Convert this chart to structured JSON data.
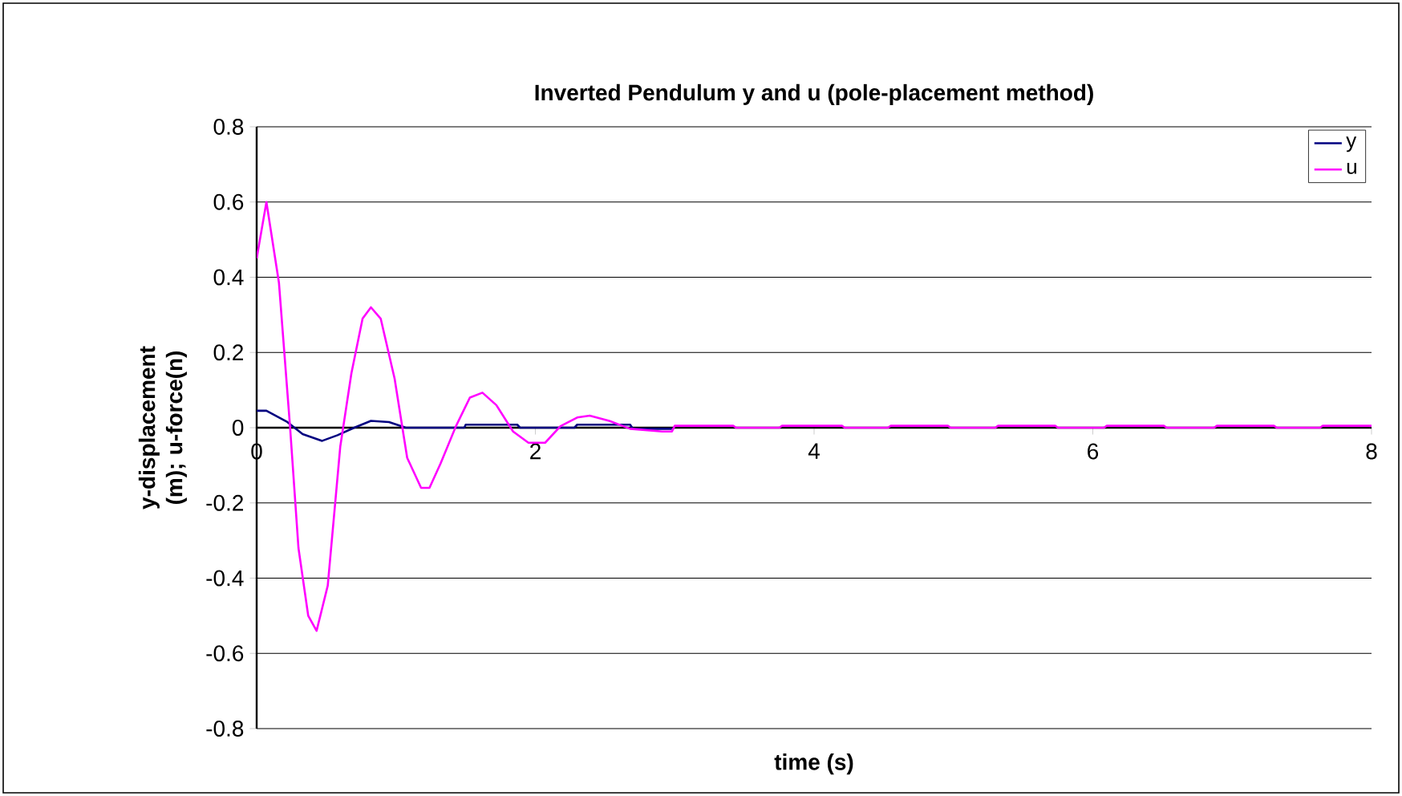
{
  "chart_data": {
    "type": "line",
    "title": "Inverted Pendulum y and u (pole-placement method)",
    "xlabel": "time (s)",
    "ylabel": "y-displacement (m); u-force(n)",
    "xlim": [
      0,
      8
    ],
    "ylim": [
      -0.8,
      0.8
    ],
    "xticks": [
      0,
      2,
      4,
      6,
      8
    ],
    "yticks": [
      -0.8,
      -0.6,
      -0.4,
      -0.2,
      0,
      0.2,
      0.4,
      0.6,
      0.8
    ],
    "grid": "y",
    "legend": "top right",
    "marker": "none",
    "line_style": "solid",
    "series": [
      {
        "name": "y",
        "color": "#000080",
        "x": [
          0,
          0.07,
          0.22,
          0.33,
          0.47,
          0.58,
          0.7,
          0.82,
          0.95,
          1.07,
          1.49,
          1.5,
          1.87,
          1.89,
          2.28,
          2.3,
          2.68,
          2.7,
          2.98
        ],
        "values": [
          0.045,
          0.045,
          0.015,
          -0.017,
          -0.035,
          -0.02,
          0,
          0.018,
          0.015,
          0,
          0,
          0.008,
          0.008,
          0,
          0,
          0.008,
          0.008,
          -0.003,
          -0.003
        ]
      },
      {
        "name": "u",
        "color": "#ff00ff",
        "x": [
          0,
          0.07,
          0.16,
          0.24,
          0.3,
          0.37,
          0.43,
          0.51,
          0.6,
          0.68,
          0.76,
          0.82,
          0.89,
          0.99,
          1.08,
          1.18,
          1.24,
          1.32,
          1.43,
          1.53,
          1.62,
          1.72,
          1.84,
          1.95,
          2.07,
          2.18,
          2.3,
          2.39,
          2.53,
          2.68,
          2.91,
          2.98,
          3.0,
          3.42,
          3.44,
          3.75,
          3.77,
          4.2,
          4.22,
          4.53,
          4.55,
          4.96,
          4.98,
          5.3,
          5.32,
          5.73,
          5.75,
          6.08,
          6.1,
          6.51,
          6.53,
          6.87,
          6.89,
          7.3,
          7.32,
          7.63,
          7.65,
          8
        ],
        "values": [
          0.45,
          0.6,
          0.385,
          0,
          -0.32,
          -0.5,
          -0.54,
          -0.42,
          -0.05,
          0.145,
          0.29,
          0.32,
          0.29,
          0.13,
          -0.08,
          -0.16,
          -0.16,
          -0.095,
          0.004,
          0.08,
          0.093,
          0.06,
          -0.01,
          -0.04,
          -0.04,
          0.004,
          0.027,
          0.032,
          0.018,
          -0.003,
          -0.01,
          -0.01,
          0.005,
          0.005,
          0,
          0,
          0.005,
          0.005,
          0,
          0,
          0.005,
          0.005,
          0,
          0,
          0.005,
          0.005,
          0,
          0,
          0.005,
          0.005,
          0,
          0,
          0.005,
          0.005,
          0,
          0,
          0.005,
          0.005
        ]
      }
    ]
  }
}
